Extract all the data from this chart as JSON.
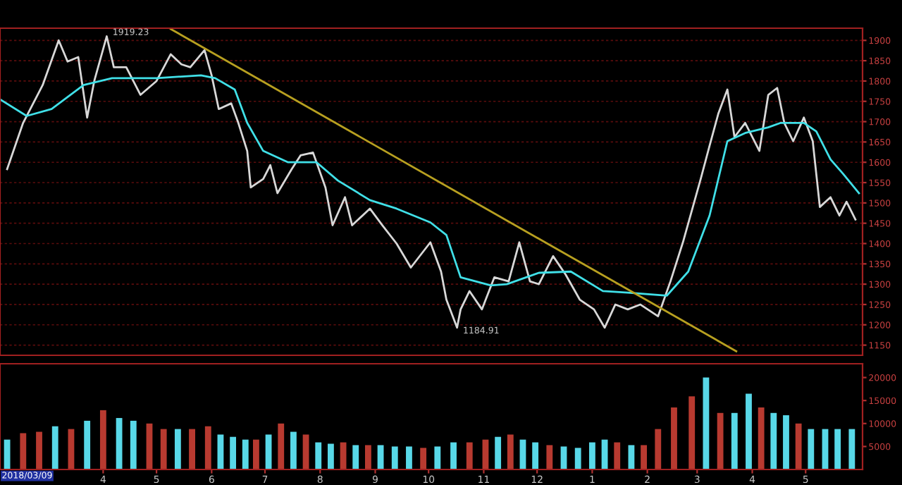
{
  "chart_data": [
    {
      "type": "line",
      "xlim": [
        "2018-02-02",
        "2019-06-02"
      ],
      "ylim": [
        1125,
        1930
      ],
      "yticks": [
        1150,
        1200,
        1250,
        1300,
        1350,
        1400,
        1450,
        1500,
        1550,
        1600,
        1650,
        1700,
        1750,
        1800,
        1850,
        1900
      ],
      "tick_labels": "y",
      "grid": "y",
      "legend": false,
      "annotations": [
        {
          "text": "1919.23",
          "x": "2018-04-03",
          "y": 1919.23
        },
        {
          "text": "1184.91",
          "x": "2018-10-17",
          "y": 1184.91
        }
      ],
      "series": [
        {
          "color": "#d8d8d8",
          "x": [
            "2018-02-06",
            "2018-02-15",
            "2018-02-26",
            "2018-03-07",
            "2018-03-12",
            "2018-03-18",
            "2018-03-23",
            "2018-03-27",
            "2018-04-03",
            "2018-04-07",
            "2018-04-14",
            "2018-04-22",
            "2018-05-01",
            "2018-05-09",
            "2018-05-15",
            "2018-05-20",
            "2018-05-28",
            "2018-06-01",
            "2018-06-05",
            "2018-06-12",
            "2018-06-16",
            "2018-06-21",
            "2018-06-23",
            "2018-06-30",
            "2018-07-04",
            "2018-07-08",
            "2018-07-16",
            "2018-07-21",
            "2018-07-28",
            "2018-08-04",
            "2018-08-08",
            "2018-08-15",
            "2018-08-19",
            "2018-08-29",
            "2018-09-05",
            "2018-09-13",
            "2018-09-21",
            "2018-10-02",
            "2018-10-08",
            "2018-10-11",
            "2018-10-17",
            "2018-10-19",
            "2018-10-24",
            "2018-10-31",
            "2018-11-07",
            "2018-11-15",
            "2018-11-21",
            "2018-11-27",
            "2018-12-02",
            "2018-12-10",
            "2018-12-17",
            "2018-12-25",
            "2019-01-02",
            "2019-01-08",
            "2019-01-14",
            "2019-01-21",
            "2019-01-28",
            "2019-02-07",
            "2019-02-14",
            "2019-02-21",
            "2019-03-03",
            "2019-03-08",
            "2019-03-13",
            "2019-03-18",
            "2019-03-22",
            "2019-03-28",
            "2019-04-05",
            "2019-04-10",
            "2019-04-15",
            "2019-04-19",
            "2019-04-24",
            "2019-04-30",
            "2019-05-05",
            "2019-05-09",
            "2019-05-15",
            "2019-05-20",
            "2019-05-24",
            "2019-05-29"
          ],
          "values": [
            1583,
            1697,
            1790,
            1900,
            1848,
            1859,
            1710,
            1800,
            1910,
            1834,
            1834,
            1766,
            1800,
            1866,
            1841,
            1834,
            1876,
            1814,
            1731,
            1745,
            1697,
            1628,
            1538,
            1559,
            1593,
            1524,
            1583,
            1617,
            1624,
            1538,
            1445,
            1514,
            1445,
            1486,
            1445,
            1400,
            1341,
            1403,
            1331,
            1262,
            1193,
            1238,
            1283,
            1238,
            1317,
            1307,
            1403,
            1307,
            1300,
            1369,
            1324,
            1262,
            1238,
            1193,
            1250,
            1238,
            1250,
            1221,
            1307,
            1403,
            1559,
            1641,
            1721,
            1779,
            1662,
            1697,
            1628,
            1766,
            1783,
            1697,
            1652,
            1710,
            1652,
            1490,
            1514,
            1469,
            1503,
            1459
          ]
        },
        {
          "color": "#40e0e8",
          "x": [
            "2018-02-02",
            "2018-02-17",
            "2018-03-03",
            "2018-03-21",
            "2018-04-06",
            "2018-05-01",
            "2018-05-26",
            "2018-06-03",
            "2018-06-14",
            "2018-06-21",
            "2018-06-30",
            "2018-07-14",
            "2018-07-30",
            "2018-08-11",
            "2018-08-29",
            "2018-09-13",
            "2018-10-02",
            "2018-10-11",
            "2018-10-19",
            "2018-11-05",
            "2018-11-14",
            "2018-12-02",
            "2018-12-20",
            "2019-01-07",
            "2019-01-21",
            "2019-02-12",
            "2019-02-24",
            "2019-03-08",
            "2019-03-18",
            "2019-03-28",
            "2019-04-10",
            "2019-04-17",
            "2019-04-30",
            "2019-05-07",
            "2019-05-15",
            "2019-05-22",
            "2019-05-31"
          ],
          "values": [
            1755,
            1714,
            1731,
            1790,
            1807,
            1807,
            1814,
            1807,
            1779,
            1697,
            1628,
            1600,
            1600,
            1555,
            1507,
            1486,
            1452,
            1421,
            1317,
            1297,
            1300,
            1328,
            1331,
            1283,
            1279,
            1272,
            1331,
            1469,
            1652,
            1672,
            1686,
            1697,
            1697,
            1676,
            1607,
            1572,
            1524
          ]
        },
        {
          "color": "#b8a020",
          "x": [
            "2018-05-09",
            "2019-03-23"
          ],
          "values": [
            1928,
            1135
          ]
        }
      ]
    },
    {
      "type": "bar",
      "xlim": [
        "2018-02-02",
        "2019-06-02"
      ],
      "ylim": [
        0,
        23000
      ],
      "yticks": [
        5000,
        10000,
        15000,
        20000
      ],
      "xticks": [
        {
          "value": "2018-04-01",
          "label": "4"
        },
        {
          "value": "2018-05-01",
          "label": "5"
        },
        {
          "value": "2018-06-01",
          "label": "6"
        },
        {
          "value": "2018-07-01",
          "label": "7"
        },
        {
          "value": "2018-08-01",
          "label": "8"
        },
        {
          "value": "2018-09-01",
          "label": "9"
        },
        {
          "value": "2018-10-01",
          "label": "10"
        },
        {
          "value": "2018-11-01",
          "label": "11"
        },
        {
          "value": "2018-12-01",
          "label": "12"
        },
        {
          "value": "2019-01-01",
          "label": "1"
        },
        {
          "value": "2019-02-01",
          "label": "2"
        },
        {
          "value": "2019-03-01",
          "label": "3"
        },
        {
          "value": "2019-04-01",
          "label": "4"
        },
        {
          "value": "2019-05-01",
          "label": "5"
        }
      ],
      "grid": false,
      "legend": false,
      "annotations": [
        "2018/03/09"
      ],
      "x": [
        "2018-02-06",
        "2018-02-15",
        "2018-02-24",
        "2018-03-05",
        "2018-03-14",
        "2018-03-23",
        "2018-04-01",
        "2018-04-10",
        "2018-04-18",
        "2018-04-27",
        "2018-05-05",
        "2018-05-13",
        "2018-05-21",
        "2018-05-30",
        "2018-06-06",
        "2018-06-13",
        "2018-06-20",
        "2018-06-26",
        "2018-07-03",
        "2018-07-10",
        "2018-07-17",
        "2018-07-24",
        "2018-07-31",
        "2018-08-07",
        "2018-08-14",
        "2018-08-21",
        "2018-08-28",
        "2018-09-04",
        "2018-09-12",
        "2018-09-20",
        "2018-09-28",
        "2018-10-06",
        "2018-10-15",
        "2018-10-24",
        "2018-11-02",
        "2018-11-09",
        "2018-11-16",
        "2018-11-23",
        "2018-11-30",
        "2018-12-08",
        "2018-12-16",
        "2018-12-24",
        "2019-01-01",
        "2019-01-08",
        "2019-01-15",
        "2019-01-23",
        "2019-01-30",
        "2019-02-07",
        "2019-02-16",
        "2019-02-26",
        "2019-03-06",
        "2019-03-14",
        "2019-03-22",
        "2019-03-30",
        "2019-04-06",
        "2019-04-13",
        "2019-04-20",
        "2019-04-27",
        "2019-05-04",
        "2019-05-12",
        "2019-05-19",
        "2019-05-27"
      ],
      "values": [
        6500,
        7900,
        8200,
        9400,
        8800,
        10600,
        12900,
        11200,
        10600,
        10000,
        8800,
        8800,
        8800,
        9400,
        7600,
        7100,
        6500,
        6500,
        7600,
        10000,
        8200,
        7600,
        5900,
        5600,
        5900,
        5300,
        5300,
        5300,
        5000,
        5000,
        4700,
        5000,
        5900,
        5900,
        6500,
        7100,
        7600,
        6500,
        5900,
        5300,
        5000,
        4700,
        5900,
        6500,
        5900,
        5300,
        5300,
        8800,
        13500,
        15900,
        20000,
        12300,
        12300,
        16500,
        13500,
        12300,
        11800,
        10000,
        8800,
        8800,
        8800,
        8800
      ],
      "colors": [
        "#58d8e8",
        "#b83a30",
        "#b83a30",
        "#58d8e8",
        "#b83a30",
        "#58d8e8",
        "#b83a30",
        "#58d8e8",
        "#58d8e8",
        "#b83a30",
        "#b83a30",
        "#58d8e8",
        "#b83a30",
        "#b83a30",
        "#58d8e8",
        "#58d8e8",
        "#58d8e8",
        "#b83a30",
        "#58d8e8",
        "#b83a30",
        "#58d8e8",
        "#b83a30",
        "#58d8e8",
        "#58d8e8",
        "#b83a30",
        "#58d8e8",
        "#b83a30",
        "#58d8e8",
        "#58d8e8",
        "#58d8e8",
        "#b83a30",
        "#58d8e8",
        "#58d8e8",
        "#b83a30",
        "#b83a30",
        "#58d8e8",
        "#b83a30",
        "#58d8e8",
        "#58d8e8",
        "#b83a30",
        "#58d8e8",
        "#58d8e8",
        "#58d8e8",
        "#58d8e8",
        "#b83a30",
        "#58d8e8",
        "#b83a30",
        "#b83a30",
        "#b83a30",
        "#b83a30",
        "#58d8e8",
        "#b83a30",
        "#58d8e8",
        "#58d8e8",
        "#b83a30",
        "#58d8e8",
        "#58d8e8",
        "#b83a30",
        "#58d8e8",
        "#58d8e8",
        "#58d8e8",
        "#58d8e8"
      ]
    }
  ]
}
